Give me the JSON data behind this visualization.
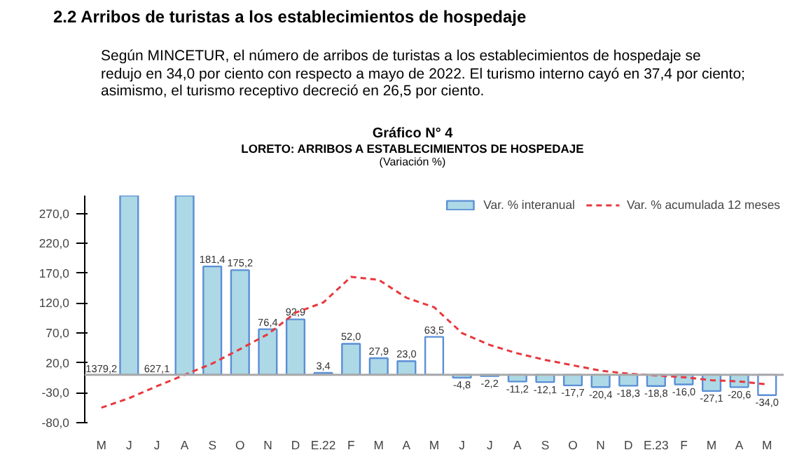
{
  "chart_data": {
    "type": "bar",
    "title": "Gráfico N° 4",
    "subtitle": "LORETO: ARRIBOS A ESTABLECIMIENTOS DE HOSPEDAJE\n(Variación %)",
    "annotations": [
      "2.2  Arribos de turistas a los establecimientos de hospedaje",
      "Según MINCETUR, el número de arribos de turistas a los establecimientos de hospedaje se redujo en 34,0 por ciento con respecto a mayo de 2022. El turismo interno cayó en 37,4 por ciento; asimismo, el turismo receptivo decreció en 26,5 por ciento."
    ],
    "categories": [
      "M",
      "J",
      "J",
      "A",
      "S",
      "O",
      "N",
      "D",
      "E.22",
      "F",
      "M",
      "A",
      "M",
      "J",
      "J",
      "A",
      "S",
      "O",
      "N",
      "D",
      "E.23",
      "F",
      "M",
      "A",
      "M"
    ],
    "series": [
      {
        "name": "Var. % interanual",
        "color": "#add8e6",
        "colors": [
          "#ffffff",
          "#add8e6",
          "#add8e6",
          "#add8e6",
          "#add8e6",
          "#add8e6",
          "#add8e6",
          "#add8e6",
          "#add8e6",
          "#add8e6",
          "#add8e6",
          "#add8e6",
          "#ffffff",
          "#add8e6",
          "#add8e6",
          "#add8e6",
          "#add8e6",
          "#add8e6",
          "#add8e6",
          "#add8e6",
          "#add8e6",
          "#add8e6",
          "#add8e6",
          "#add8e6",
          "#ffffff"
        ],
        "values": [
          null,
          300,
          null,
          300,
          181.4,
          175.2,
          76.4,
          92.9,
          3.4,
          52.0,
          27.9,
          23.0,
          63.5,
          -4.8,
          -2.2,
          -11.2,
          -12.1,
          -17.7,
          -20.4,
          -18.3,
          -18.8,
          -16.0,
          -27.1,
          -20.6,
          -34.0
        ],
        "value_labels": [
          "1379,2",
          null,
          "627,1",
          null,
          "181,4",
          "175,2",
          "76,4",
          "92,9",
          "3,4",
          "52,0",
          "27,9",
          "23,0",
          "63,5",
          "-4,8",
          "-2,2",
          "-11,2",
          "-12,1",
          "-17,7",
          "-20,4",
          "-18,3",
          "-18,8",
          "-16,0",
          "-27,1",
          "-20,6",
          "-34,0"
        ]
      },
      {
        "name": "Var. % acumulada 12 meses",
        "type": "line",
        "color": "#e8383d",
        "line_style": "dashed",
        "values": [
          -55,
          -39,
          -19,
          0,
          19,
          43,
          68,
          104,
          121,
          164,
          159,
          129,
          113,
          70,
          50,
          36,
          25,
          16,
          7,
          2,
          -1,
          -4,
          -9,
          -11,
          -16
        ]
      }
    ],
    "ylim": [
      -80,
      300
    ],
    "yticks": [
      {
        "value": -80,
        "label": "-80,0"
      },
      {
        "value": -30,
        "label": "-30,0"
      },
      {
        "value": 20,
        "label": "20,0"
      },
      {
        "value": 70,
        "label": "70,0"
      },
      {
        "value": 120,
        "label": "120,0"
      },
      {
        "value": 170,
        "label": "170,0"
      },
      {
        "value": 220,
        "label": "220,0"
      },
      {
        "value": 270,
        "label": "270,0"
      }
    ],
    "legend": "top right",
    "grid": false
  }
}
